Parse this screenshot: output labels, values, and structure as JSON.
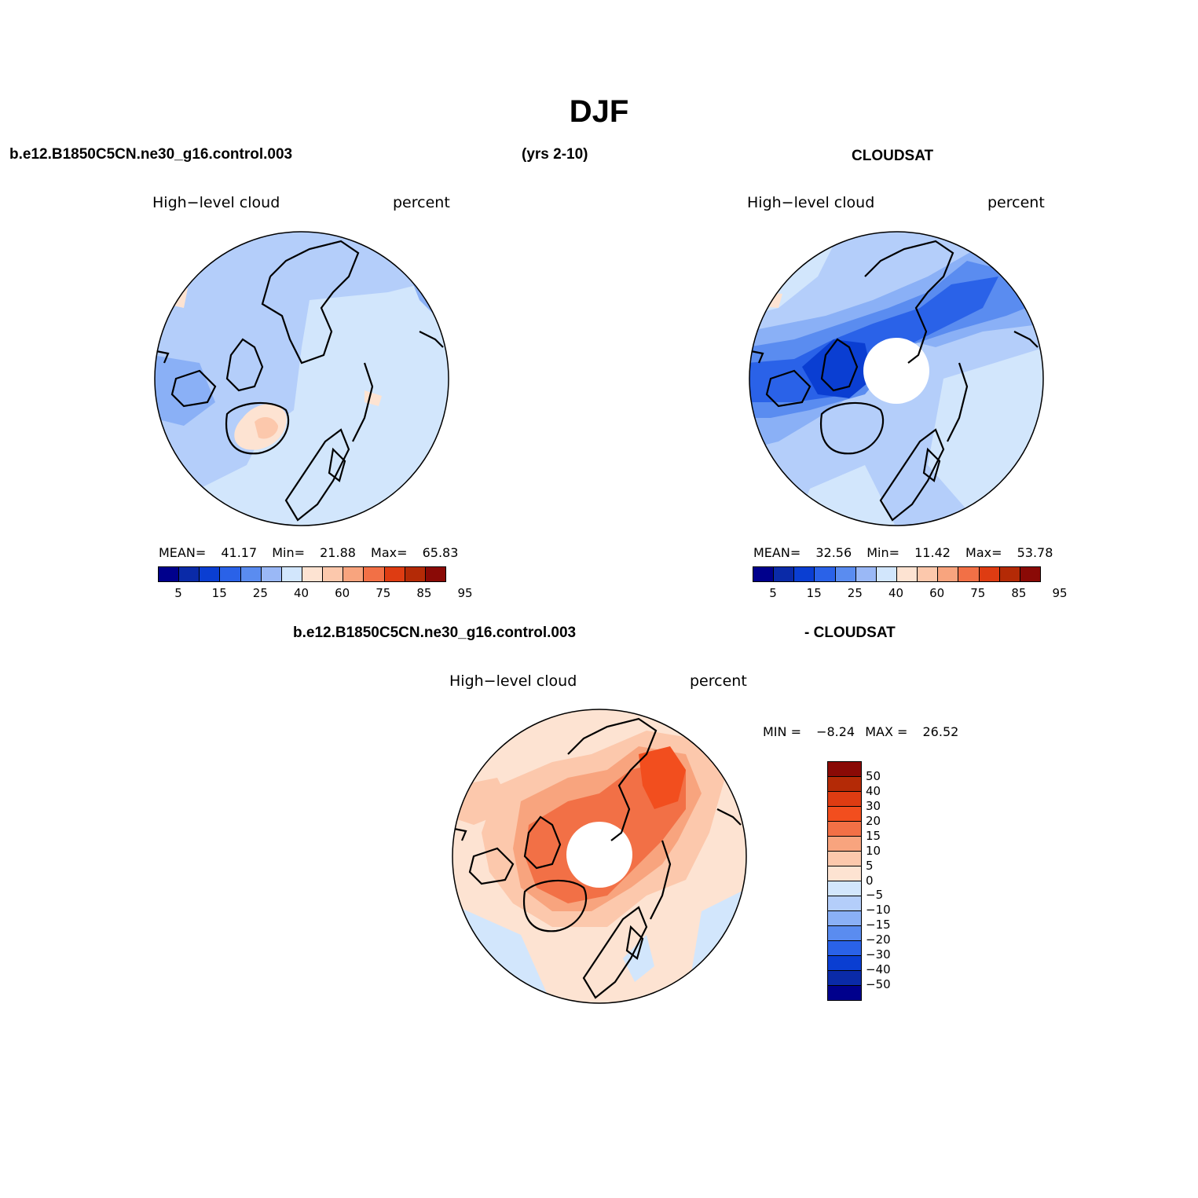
{
  "title": "DJF",
  "header": {
    "case": "b.e12.B1850C5CN.ne30_g16.control.003",
    "years": "(yrs 2-10)",
    "obs": "CLOUDSAT"
  },
  "diff_header": {
    "case": "b.e12.B1850C5CN.ne30_g16.control.003",
    "obs": "- CLOUDSAT"
  },
  "panels": [
    {
      "field": "High−level cloud",
      "units": "percent",
      "mean_label": "MEAN=",
      "mean": "41.17",
      "min_label": "Min=",
      "min": "21.88",
      "max_label": "Max=",
      "max": "65.83"
    },
    {
      "field": "High−level cloud",
      "units": "percent",
      "mean_label": "MEAN=",
      "mean": "32.56",
      "min_label": "Min=",
      "min": "11.42",
      "max_label": "Max=",
      "max": "53.78"
    }
  ],
  "diff_panel": {
    "field": "High−level cloud",
    "units": "percent",
    "min_label": "MIN =",
    "min": "−8.24",
    "max_label": "MAX =",
    "max": "26.52"
  },
  "colorbar": {
    "colors": [
      "#00008c",
      "#0a2aa8",
      "#0a3ed2",
      "#2a62e8",
      "#5a8cf0",
      "#9ab8f6",
      "#d2e6fc",
      "#fde3d2",
      "#fcc8ac",
      "#f8a47e",
      "#f27046",
      "#de3c12",
      "#b42a06",
      "#8a0a06"
    ],
    "tick_labels": [
      "5",
      "15",
      "25",
      "40",
      "60",
      "75",
      "85",
      "95"
    ]
  },
  "diff_colorbar": {
    "colors": [
      "#8a0a06",
      "#b42a06",
      "#de3c12",
      "#f24e1e",
      "#f27046",
      "#f8a47e",
      "#fcc8ac",
      "#fde3d2",
      "#d2e6fc",
      "#b4cefa",
      "#8ab0f6",
      "#5a8cf0",
      "#2a62e8",
      "#0a3ed2",
      "#0a2aa8",
      "#00008c"
    ],
    "tick_labels": [
      "50",
      "40",
      "30",
      "20",
      "15",
      "10",
      "5",
      "0",
      "−5",
      "−10",
      "−15",
      "−20",
      "−30",
      "−40",
      "−50"
    ]
  }
}
